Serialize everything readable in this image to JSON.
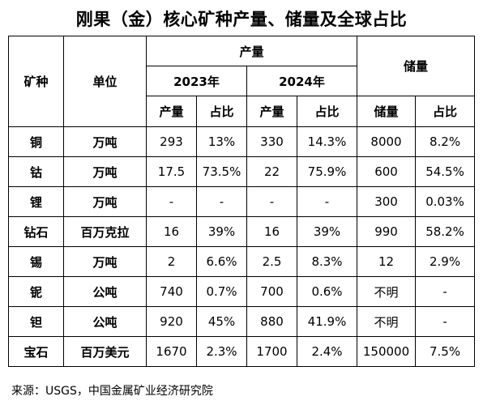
{
  "title": "刚果（金）核心矿种产量、储量及全球占比",
  "headers": {
    "mineral": "矿种",
    "unit": "单位",
    "production": "产量",
    "reserves": "储量",
    "year1": "2023年",
    "year2": "2024年",
    "prod1": "产量",
    "share1": "占比",
    "prod2": "产量",
    "share2": "占比",
    "reserve": "储量",
    "share3": "占比"
  },
  "rows": [
    {
      "mineral": "铜",
      "unit": "万吨",
      "p2023": "293",
      "s2023": "13%",
      "p2024": "330",
      "s2024": "14.3%",
      "reserve": "8000",
      "rshare": "8.2%"
    },
    {
      "mineral": "钴",
      "unit": "万吨",
      "p2023": "17.5",
      "s2023": "73.5%",
      "p2024": "22",
      "s2024": "75.9%",
      "reserve": "600",
      "rshare": "54.5%"
    },
    {
      "mineral": "锂",
      "unit": "万吨",
      "p2023": "-",
      "s2023": "-",
      "p2024": "-",
      "s2024": "-",
      "reserve": "300",
      "rshare": "0.03%"
    },
    {
      "mineral": "钻石",
      "unit": "百万克拉",
      "p2023": "16",
      "s2023": "39%",
      "p2024": "16",
      "s2024": "39%",
      "reserve": "990",
      "rshare": "58.2%"
    },
    {
      "mineral": "锡",
      "unit": "万吨",
      "p2023": "2",
      "s2023": "6.6%",
      "p2024": "2.5",
      "s2024": "8.3%",
      "reserve": "12",
      "rshare": "2.9%"
    },
    {
      "mineral": "铌",
      "unit": "公吨",
      "p2023": "740",
      "s2023": "0.7%",
      "p2024": "700",
      "s2024": "0.6%",
      "reserve": "不明",
      "rshare": "-"
    },
    {
      "mineral": "钽",
      "unit": "公吨",
      "p2023": "920",
      "s2023": "45%",
      "p2024": "880",
      "s2024": "41.9%",
      "reserve": "不明",
      "rshare": "-"
    },
    {
      "mineral": "宝石",
      "unit": "百万美元",
      "p2023": "1670",
      "s2023": "2.3%",
      "p2024": "1700",
      "s2024": "2.4%",
      "reserve": "150000",
      "rshare": "7.5%"
    }
  ],
  "source": "来源：USGS，中国金属矿业经济研究院"
}
